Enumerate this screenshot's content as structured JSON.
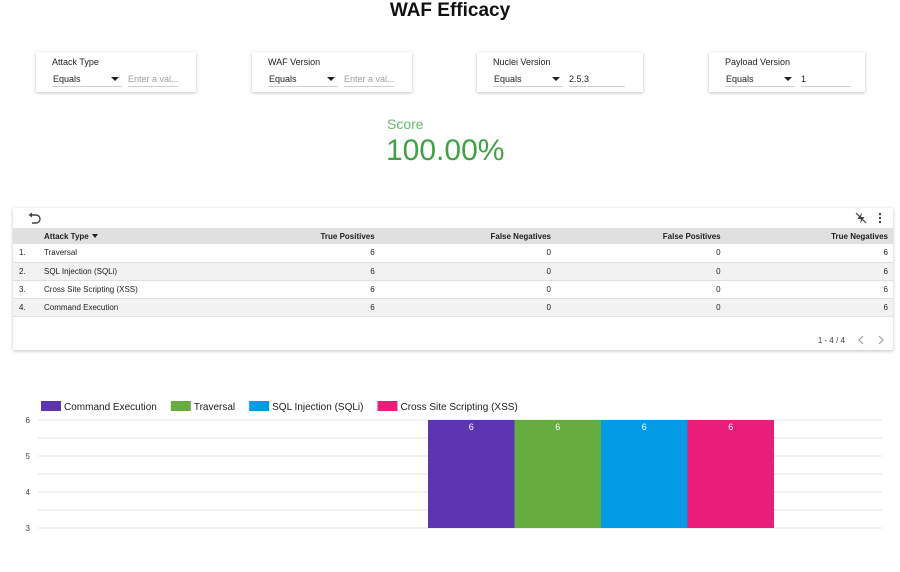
{
  "page": {
    "title": "WAF Efficacy"
  },
  "filters": [
    {
      "label": "Attack Type",
      "operator": "Equals",
      "value": "",
      "placeholder": "Enter a val..."
    },
    {
      "label": "WAF Version",
      "operator": "Equals",
      "value": "",
      "placeholder": "Enter a val..."
    },
    {
      "label": "Nuclei Version",
      "operator": "Equals",
      "value": "2.5.3",
      "placeholder": ""
    },
    {
      "label": "Payload Version",
      "operator": "Equals",
      "value": "1",
      "placeholder": ""
    }
  ],
  "score": {
    "label": "Score",
    "value": "100.00%"
  },
  "table": {
    "columns": [
      "Attack Type",
      "True Positives",
      "False Negatives",
      "False Positives",
      "True Negatives"
    ],
    "rows": [
      {
        "index": "1.",
        "attack_type": "Traversal",
        "tp": "6",
        "fn": "0",
        "fp": "0",
        "tn": "6"
      },
      {
        "index": "2.",
        "attack_type": "SQL Injection (SQLi)",
        "tp": "6",
        "fn": "0",
        "fp": "0",
        "tn": "6"
      },
      {
        "index": "3.",
        "attack_type": "Cross Site Scripting (XSS)",
        "tp": "6",
        "fn": "0",
        "fp": "0",
        "tn": "6"
      },
      {
        "index": "4.",
        "attack_type": "Command Execution",
        "tp": "6",
        "fn": "0",
        "fp": "0",
        "tn": "6"
      }
    ],
    "pagination": "1 - 4 / 4"
  },
  "icons": {
    "undo": "undo-icon",
    "lightning": "lightning-off-icon",
    "more": "more-vert-icon",
    "prev": "chevron-left-icon",
    "next": "chevron-right-icon"
  },
  "chart_data": {
    "type": "bar",
    "title": "",
    "xlabel": "",
    "ylabel": "",
    "ylim": [
      3,
      6
    ],
    "yticks": [
      3,
      4,
      5,
      6
    ],
    "grid": true,
    "legend_position": "top-left",
    "categories": [
      ""
    ],
    "series": [
      {
        "name": "Command Execution",
        "values": [
          6
        ],
        "color": "#5e35b1"
      },
      {
        "name": "Traversal",
        "values": [
          6
        ],
        "color": "#66ac3f"
      },
      {
        "name": "SQL Injection (SQLi)",
        "values": [
          6
        ],
        "color": "#039be5"
      },
      {
        "name": "Cross Site Scripting (XSS)",
        "values": [
          6
        ],
        "color": "#e91e7a"
      }
    ],
    "data_labels": true
  }
}
